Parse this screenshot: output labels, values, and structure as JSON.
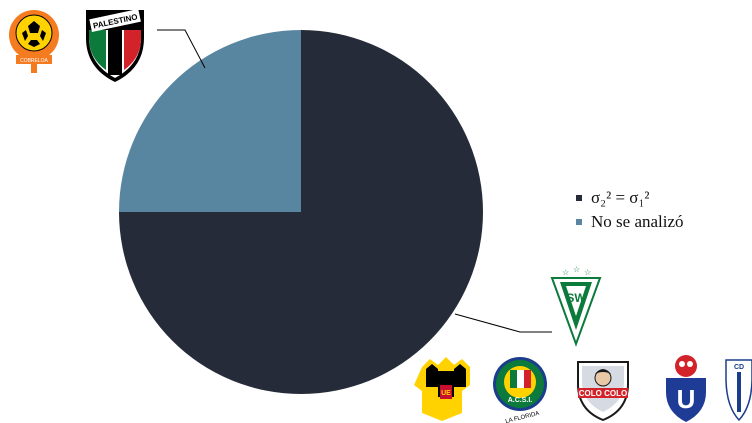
{
  "chart_data": {
    "type": "pie",
    "slices": [
      {
        "label": "σ₂² = σ₁²",
        "value": 75,
        "color": "#252b38"
      },
      {
        "label": "No se analizó",
        "value": 25,
        "color": "#5886a0"
      }
    ],
    "legend": {
      "placement": "right"
    }
  },
  "logos": [
    {
      "name": "club-logo-cobreloa",
      "text": "COBRELOA",
      "colors": [
        "#f47b20",
        "#ffd200",
        "#000000"
      ]
    },
    {
      "name": "club-logo-palestino",
      "text": "PALESTINO",
      "colors": [
        "#0c7a3a",
        "#d2232a",
        "#000000",
        "#ffffff"
      ]
    },
    {
      "name": "club-logo-wanderers",
      "text": "SW",
      "colors": [
        "#0c7a3a",
        "#ffffff"
      ]
    },
    {
      "name": "club-logo-union-espanola",
      "text": "UE",
      "colors": [
        "#ffd200",
        "#c8102e",
        "#000000"
      ]
    },
    {
      "name": "club-logo-audax",
      "text": "A.C.S.I.",
      "colors": [
        "#0c7a3a",
        "#ffd200",
        "#1a3e8c",
        "#d2232a"
      ]
    },
    {
      "name": "club-logo-la-florida",
      "text": "LA FLORIDA",
      "colors": [
        "#000000"
      ]
    },
    {
      "name": "club-logo-colo-colo",
      "text": "COLO COLO",
      "colors": [
        "#ffffff",
        "#d2232a",
        "#1a1a1a",
        "#d6dbe3"
      ]
    },
    {
      "name": "club-logo-u-de-chile",
      "text": "U",
      "colors": [
        "#1e3c96",
        "#d2232a",
        "#ffffff"
      ]
    },
    {
      "name": "club-logo-u-catolica",
      "text": "CD",
      "colors": [
        "#1a3e8c",
        "#ffffff"
      ]
    }
  ]
}
